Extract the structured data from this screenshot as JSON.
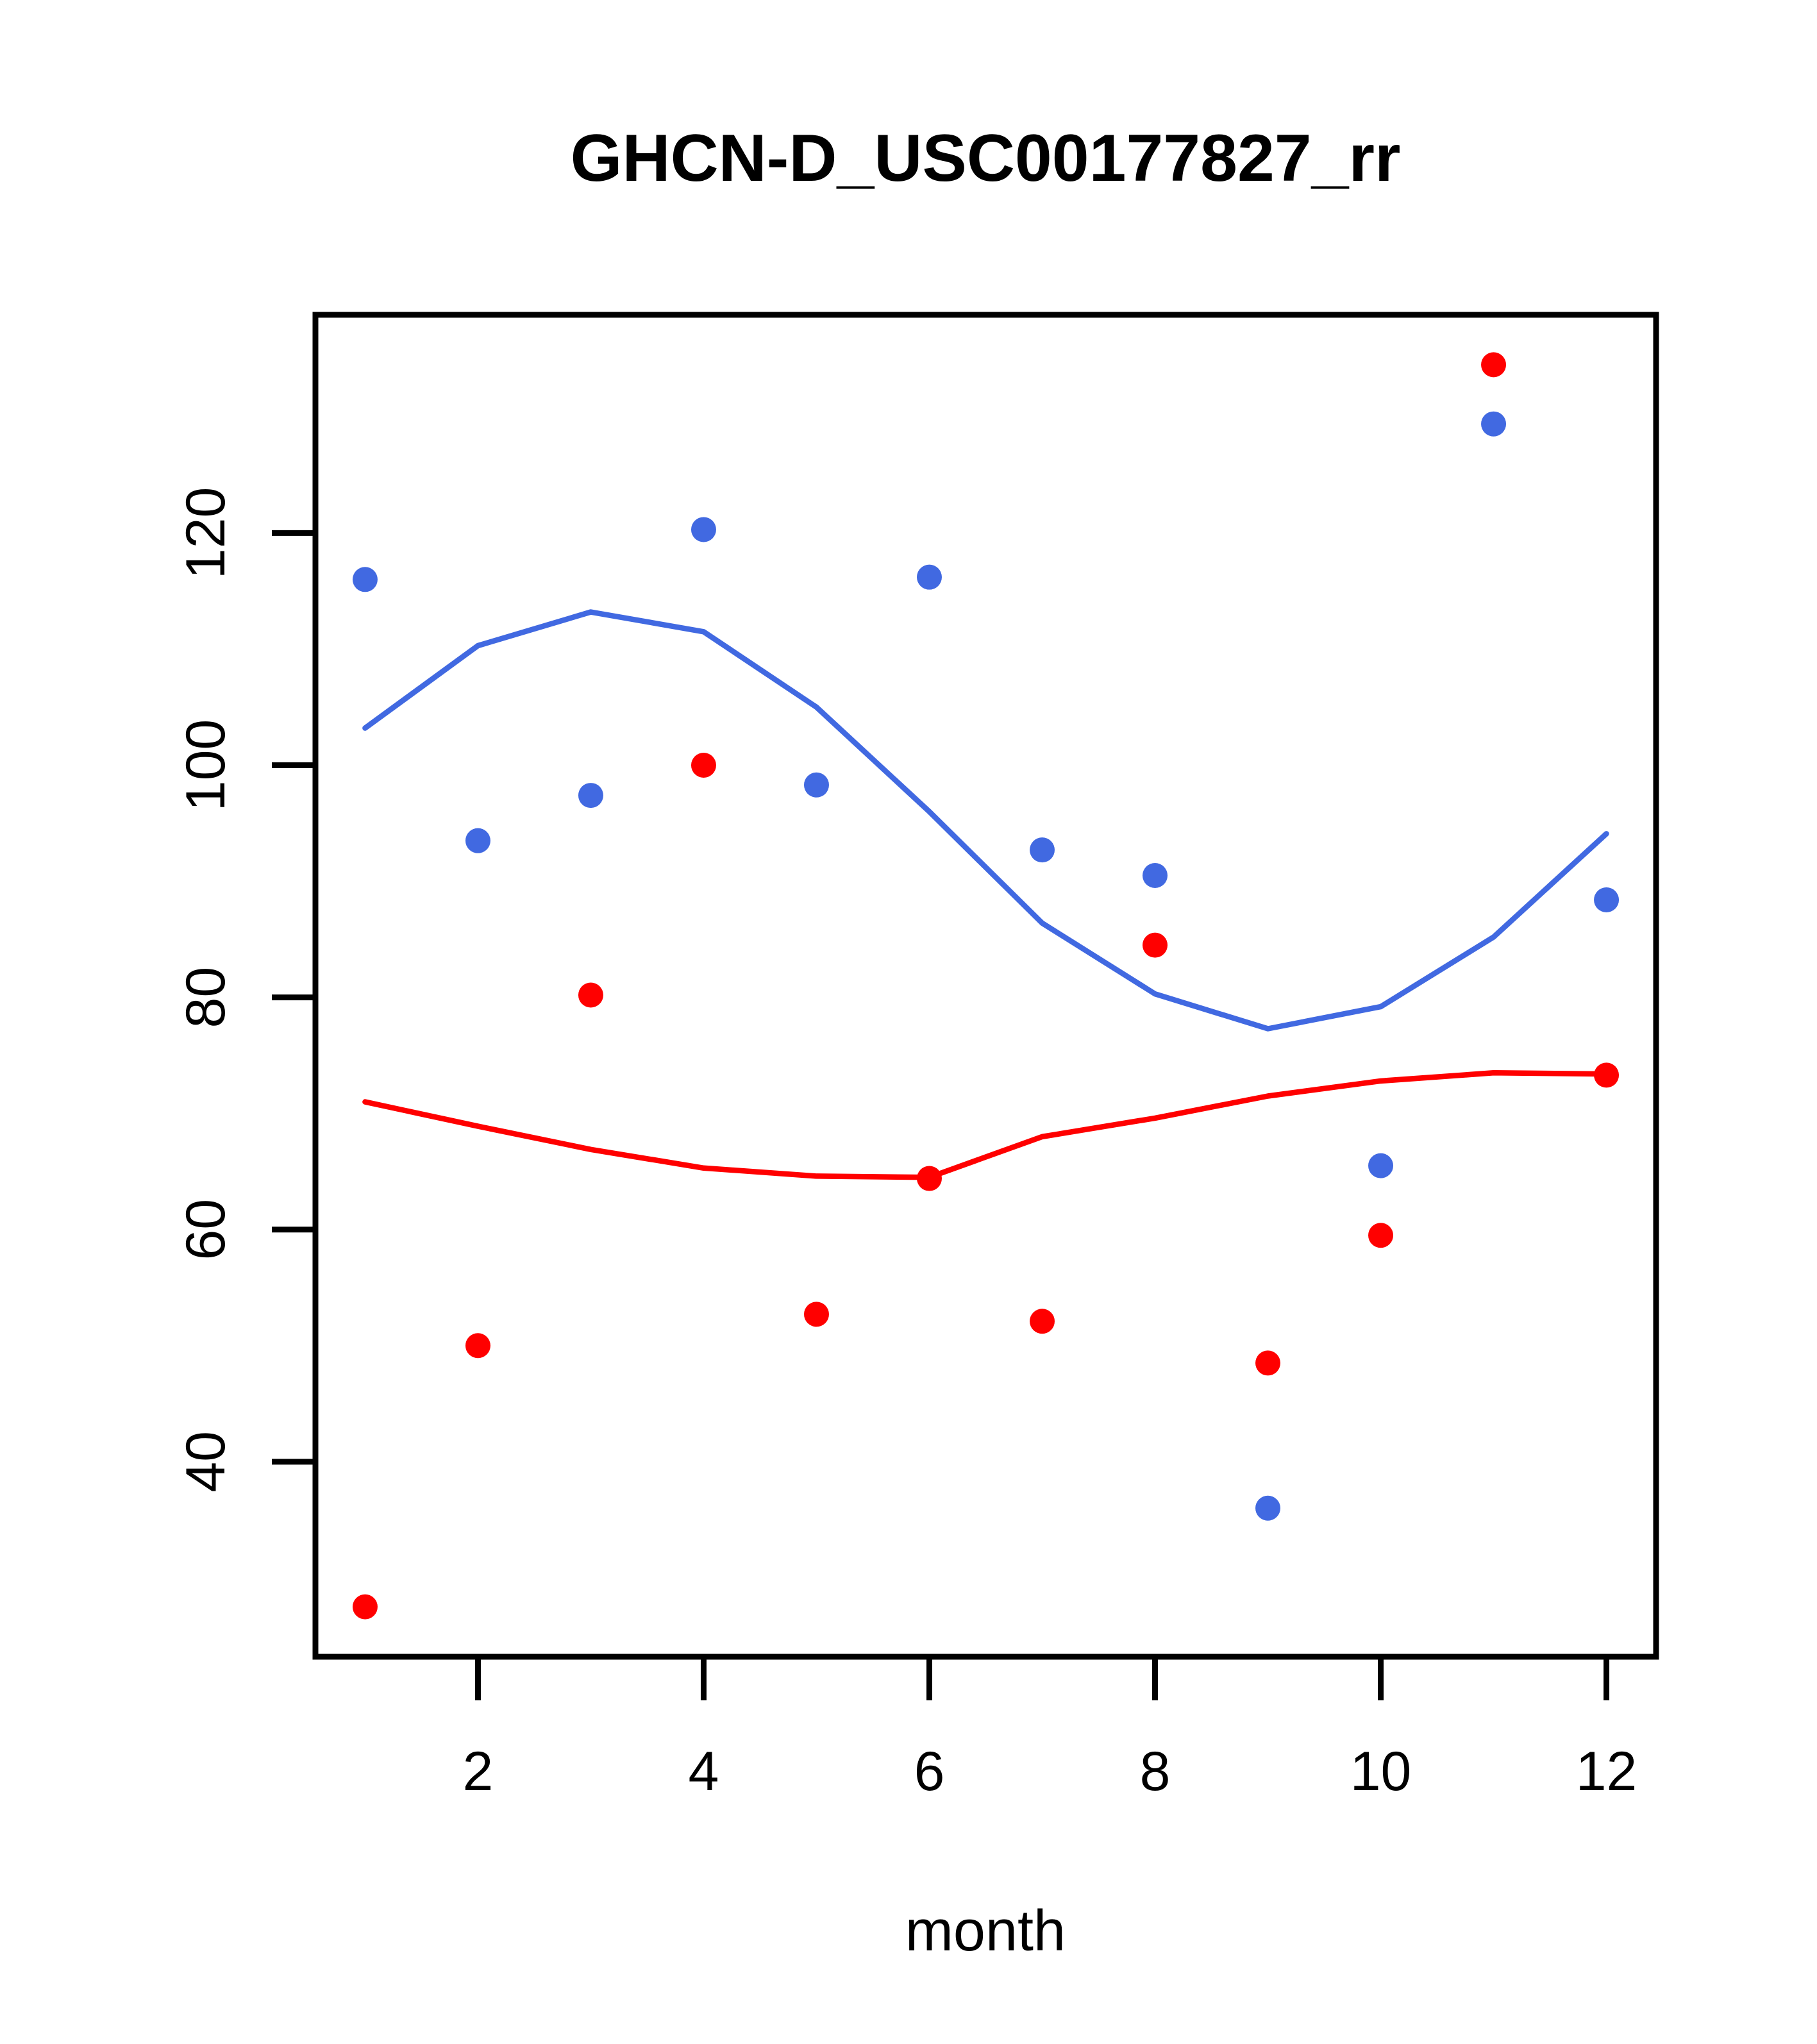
{
  "figure": {
    "title": "GHCN-D_USC00177827_rr",
    "xlabel": "month",
    "background": "#FFFFFF",
    "box_color": "#000000"
  },
  "chart_data": {
    "type": "scatter",
    "title": "GHCN-D_USC00177827_rr",
    "xlabel": "month",
    "ylabel": "",
    "x": [
      1,
      2,
      3,
      4,
      5,
      6,
      7,
      8,
      9,
      10,
      11,
      12
    ],
    "x_ticks": [
      "2",
      "4",
      "6",
      "8",
      "10",
      "12"
    ],
    "x_tick_values": [
      2,
      4,
      6,
      8,
      10,
      12
    ],
    "y_ticks": [
      "40",
      "60",
      "80",
      "100",
      "120"
    ],
    "y_tick_values": [
      40,
      60,
      80,
      100,
      120
    ],
    "xlim": [
      0.56,
      12.44
    ],
    "ylim": [
      23.2,
      138.8
    ],
    "grid": false,
    "legend": "none",
    "series": [
      {
        "name": "blue-points",
        "kind": "points",
        "color": "#4169E1",
        "values": [
          116.0,
          93.5,
          97.4,
          120.3,
          98.3,
          116.2,
          92.7,
          90.5,
          36.0,
          65.5,
          129.4,
          88.4
        ]
      },
      {
        "name": "red-points",
        "kind": "points",
        "color": "#FF0000",
        "values": [
          27.5,
          50.0,
          80.2,
          100.0,
          52.7,
          64.4,
          52.1,
          84.5,
          48.5,
          59.5,
          134.5,
          73.3
        ]
      },
      {
        "name": "blue-lowess",
        "kind": "line",
        "color": "#4169E1",
        "values": [
          103.2,
          110.3,
          113.2,
          111.5,
          105.0,
          96.0,
          86.4,
          80.3,
          77.3,
          79.2,
          85.2,
          94.1
        ]
      },
      {
        "name": "red-lowess",
        "kind": "line",
        "color": "#FF0000",
        "values": [
          71.0,
          68.9,
          66.9,
          65.3,
          64.6,
          64.5,
          68.0,
          69.6,
          71.5,
          72.8,
          73.5,
          73.4
        ]
      }
    ]
  }
}
